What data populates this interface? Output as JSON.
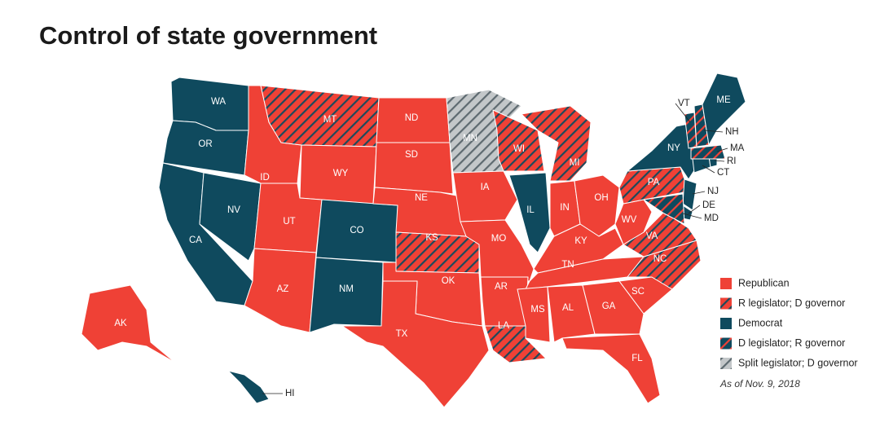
{
  "title": "Control of state government",
  "legend": [
    {
      "name": "Republican",
      "color": "#ef4136",
      "stripe": null
    },
    {
      "name": "R legislator; D governor",
      "color": "#ef4136",
      "stripe": "#1c4a5c"
    },
    {
      "name": "Democrat",
      "color": "#0f4a5e",
      "stripe": null
    },
    {
      "name": "D legislator; R governor",
      "color": "#0f4a5e",
      "stripe": "#ef4136"
    },
    {
      "name": "Split legislator; D governor",
      "color": "#c3c7c9",
      "stripe": "#5e6a70"
    }
  ],
  "note": "As of Nov. 9, 2018",
  "states": [
    {
      "label": "WA",
      "category": 2
    },
    {
      "label": "OR",
      "category": 2
    },
    {
      "label": "CA",
      "category": 2
    },
    {
      "label": "NV",
      "category": 2
    },
    {
      "label": "ID",
      "category": 0
    },
    {
      "label": "MT",
      "category": 1
    },
    {
      "label": "WY",
      "category": 0
    },
    {
      "label": "UT",
      "category": 0
    },
    {
      "label": "CO",
      "category": 2
    },
    {
      "label": "AZ",
      "category": 0
    },
    {
      "label": "NM",
      "category": 2
    },
    {
      "label": "ND",
      "category": 0
    },
    {
      "label": "SD",
      "category": 0
    },
    {
      "label": "NE",
      "category": 0
    },
    {
      "label": "KS",
      "category": 1
    },
    {
      "label": "OK",
      "category": 0
    },
    {
      "label": "TX",
      "category": 0
    },
    {
      "label": "MN",
      "category": 4
    },
    {
      "label": "IA",
      "category": 0
    },
    {
      "label": "MO",
      "category": 0
    },
    {
      "label": "AR",
      "category": 0
    },
    {
      "label": "LA",
      "category": 1
    },
    {
      "label": "WI",
      "category": 1
    },
    {
      "label": "IL",
      "category": 2
    },
    {
      "label": "MI",
      "category": 1
    },
    {
      "label": "IN",
      "category": 0
    },
    {
      "label": "OH",
      "category": 0
    },
    {
      "label": "KY",
      "category": 0
    },
    {
      "label": "TN",
      "category": 0
    },
    {
      "label": "MS",
      "category": 0
    },
    {
      "label": "AL",
      "category": 0
    },
    {
      "label": "GA",
      "category": 0
    },
    {
      "label": "FL",
      "category": 0
    },
    {
      "label": "SC",
      "category": 0
    },
    {
      "label": "NC",
      "category": 1
    },
    {
      "label": "VA",
      "category": 1
    },
    {
      "label": "WV",
      "category": 0
    },
    {
      "label": "PA",
      "category": 1
    },
    {
      "label": "NY",
      "category": 2
    },
    {
      "label": "NJ",
      "category": 2
    },
    {
      "label": "DE",
      "category": 2
    },
    {
      "label": "MD",
      "category": 3
    },
    {
      "label": "CT",
      "category": 2
    },
    {
      "label": "RI",
      "category": 2
    },
    {
      "label": "MA",
      "category": 3
    },
    {
      "label": "VT",
      "category": 3
    },
    {
      "label": "NH",
      "category": 3
    },
    {
      "label": "ME",
      "category": 2
    },
    {
      "label": "AK",
      "category": 0
    },
    {
      "label": "HI",
      "category": 2
    }
  ]
}
